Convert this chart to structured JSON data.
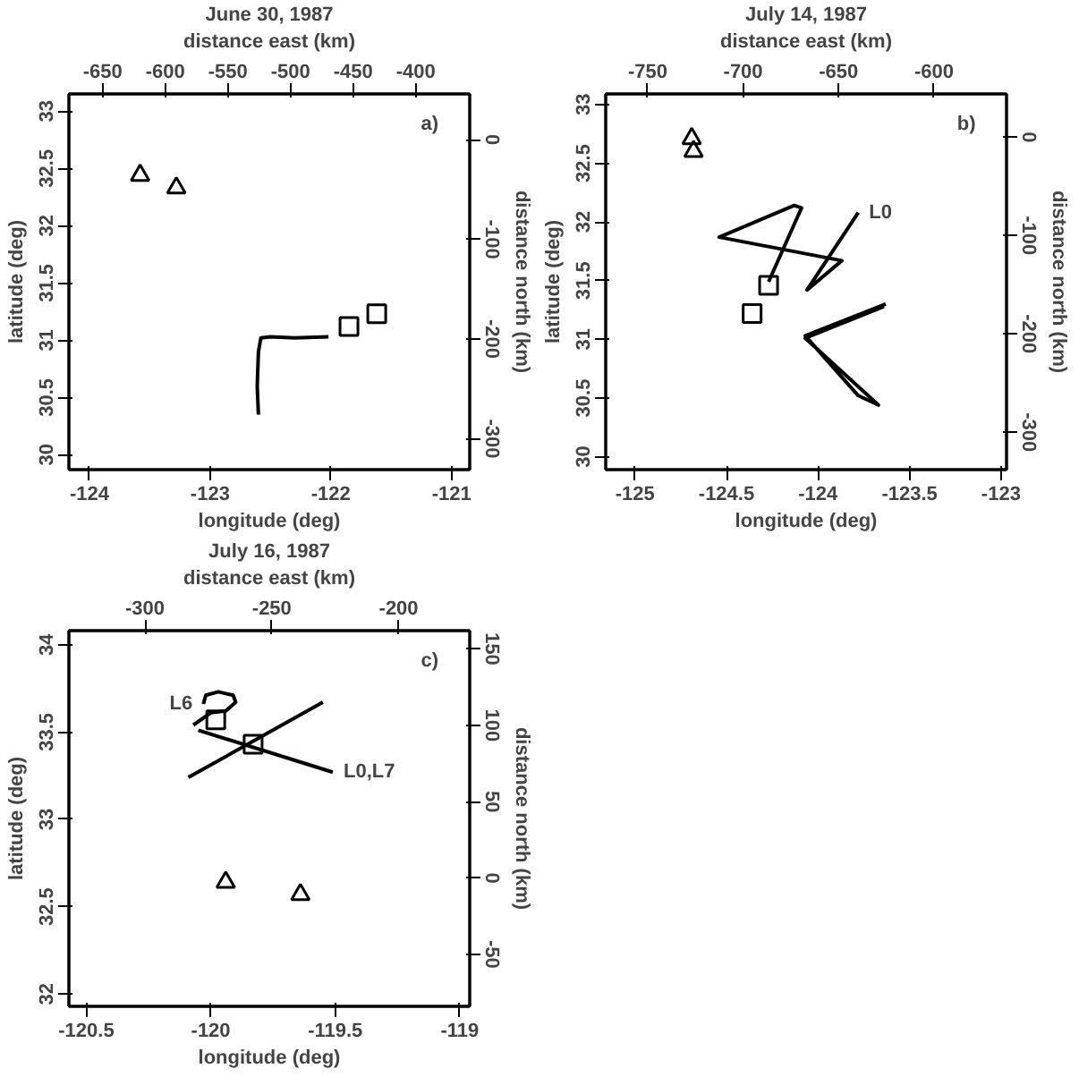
{
  "chart_data": [
    {
      "type": "line",
      "title": "June 30, 1987",
      "x2label": "distance east (km)",
      "xlabel": "longitude (deg)",
      "ylabel": "latitude (deg)",
      "y2label": "distance north (km)",
      "xlim": [
        -124.17,
        -120.85
      ],
      "ylim": [
        29.87,
        33.15
      ],
      "x2lim": [
        -677,
        -357
      ],
      "y2lim": [
        -331,
        46
      ],
      "xticks": [
        -124,
        -123,
        -122,
        -121
      ],
      "yticks": [
        30,
        30.5,
        31,
        31.5,
        32,
        32.5,
        33
      ],
      "x2ticks": [
        -650,
        -600,
        -550,
        -500,
        -450,
        -400
      ],
      "y2ticks": [
        -300,
        -200,
        -100,
        0
      ],
      "series": [
        {
          "type": "scatter",
          "marker": "triangle",
          "color": "#000000",
          "x": [
            -123.58,
            -123.28
          ],
          "values": [
            32.44,
            32.33
          ]
        },
        {
          "type": "scatter",
          "marker": "square",
          "color": "#000000",
          "x": [
            -121.85,
            -121.62
          ],
          "values": [
            31.12,
            31.23
          ]
        },
        {
          "color": "#000000",
          "x": [
            -122.6,
            -122.61,
            -122.6,
            -122.58,
            -122.5,
            -122.3,
            -122.02
          ],
          "values": [
            30.35,
            30.6,
            30.9,
            31.02,
            31.03,
            31.02,
            31.03
          ]
        }
      ],
      "annotations": [
        "a)"
      ]
    },
    {
      "type": "line",
      "title": "July 14, 1987",
      "x2label": "distance east (km)",
      "xlabel": "longitude (deg)",
      "ylabel": "latitude (deg)",
      "y2label": "distance north (km)",
      "xlim": [
        -125.16,
        -122.97
      ],
      "ylim": [
        29.89,
        33.09
      ],
      "x2lim": [
        -772,
        -562
      ],
      "y2lim": [
        -338,
        44
      ],
      "xticks": [
        -125,
        -124.5,
        -124,
        -123.5,
        -123
      ],
      "yticks": [
        30,
        30.5,
        31,
        31.5,
        32,
        32.5,
        33
      ],
      "x2ticks": [
        -750,
        -700,
        -650,
        -600
      ],
      "y2ticks": [
        -300,
        -200,
        -100,
        0
      ],
      "series": [
        {
          "type": "scatter",
          "marker": "triangle",
          "color": "#000000",
          "x": [
            -124.69,
            -124.68
          ],
          "values": [
            32.71,
            32.6
          ]
        },
        {
          "type": "scatter",
          "marker": "square",
          "color": "#000000",
          "x": [
            -124.27,
            -124.36
          ],
          "values": [
            31.46,
            31.22
          ]
        },
        {
          "color": "#000000",
          "x": [
            -123.78,
            -124.06,
            -123.87,
            -124.54,
            -124.13,
            -124.09,
            -124.27
          ],
          "values": [
            32.08,
            31.42,
            31.67,
            31.87,
            32.14,
            32.12,
            31.49
          ]
        },
        {
          "color": "#000000",
          "x": [
            -123.63,
            -124.07,
            -123.78,
            -123.67,
            -124.07,
            -123.64
          ],
          "values": [
            31.3,
            31.03,
            30.52,
            30.44,
            31.01,
            31.28
          ]
        }
      ],
      "annotations": [
        "b)",
        {
          "text": "L0",
          "x": -123.78,
          "y": 32.08
        }
      ]
    },
    {
      "type": "line",
      "title": "July 16, 1987",
      "x2label": "distance east (km)",
      "xlabel": "longitude (deg)",
      "ylabel": "latitude (deg)",
      "y2label": "distance north (km)",
      "xlim": [
        -120.57,
        -118.96
      ],
      "ylim": [
        31.93,
        34.08
      ],
      "x2lim": [
        -330,
        -172
      ],
      "y2lim": [
        -84,
        162
      ],
      "xticks": [
        -120.5,
        -120,
        -119.5,
        -119
      ],
      "yticks": [
        32,
        32.5,
        33,
        33.5,
        34
      ],
      "x2ticks": [
        -300,
        -250,
        -200
      ],
      "y2ticks": [
        -50,
        0,
        50,
        100,
        150
      ],
      "series": [
        {
          "type": "scatter",
          "marker": "triangle",
          "color": "#000000",
          "x": [
            -119.94,
            -119.64
          ],
          "values": [
            32.64,
            32.57
          ]
        },
        {
          "type": "scatter",
          "marker": "square",
          "color": "#000000",
          "x": [
            -119.98,
            -119.83
          ],
          "values": [
            33.57,
            33.43
          ]
        },
        {
          "color": "#000000",
          "x": [
            -120.09,
            -119.55
          ],
          "values": [
            33.24,
            33.67
          ]
        },
        {
          "color": "#000000",
          "x": [
            -120.05,
            -119.51
          ],
          "values": [
            33.51,
            33.27
          ]
        },
        {
          "color": "#000000",
          "x": [
            -120.03,
            -120.02,
            -119.97,
            -119.91,
            -119.9,
            -119.94,
            -120.0,
            -120.07
          ],
          "values": [
            33.66,
            33.71,
            33.73,
            33.71,
            33.67,
            33.62,
            33.61,
            33.54
          ]
        }
      ],
      "annotations": [
        "c)",
        {
          "text": "L6",
          "x": -120.03,
          "y": 33.66
        },
        {
          "text": "L0,L7",
          "x": -119.51,
          "y": 33.27
        }
      ]
    }
  ]
}
